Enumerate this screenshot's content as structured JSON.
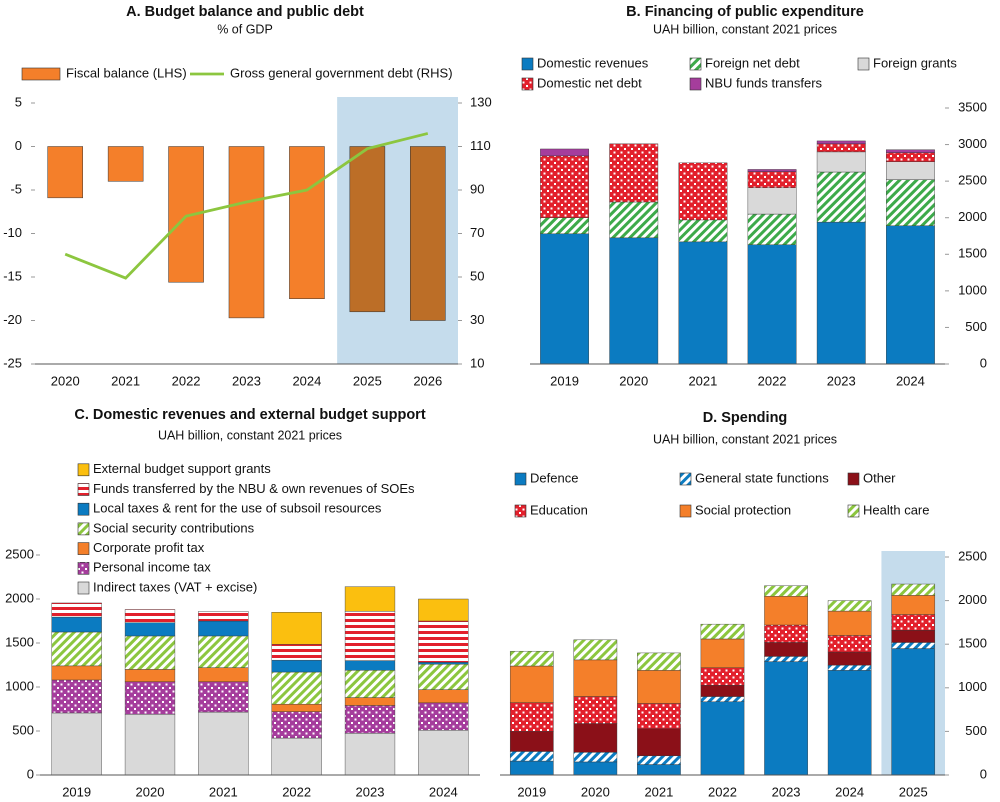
{
  "chart_data": [
    {
      "type": "bar",
      "title": "A. Budget balance and public debt",
      "subtitle": "% of GDP",
      "categories": [
        "2020",
        "2021",
        "2022",
        "2023",
        "2024",
        "2025",
        "2026"
      ],
      "series": [
        {
          "name": "Fiscal balance (LHS)",
          "type": "bar",
          "color": "#f47f2a",
          "values": [
            -5.9,
            -4.0,
            -15.6,
            -19.7,
            -17.5,
            -19.0,
            -20.0
          ]
        },
        {
          "name": "Gross general government debt (RHS)",
          "type": "line",
          "axis": "y2",
          "color": "#8cc63f",
          "values": [
            60.5,
            49.5,
            78,
            84.5,
            90,
            109,
            116
          ]
        }
      ],
      "ylim": [
        -25,
        5
      ],
      "yticks": [
        -25,
        -20,
        -15,
        -10,
        -5,
        0,
        5
      ],
      "y2lim": [
        10,
        130
      ],
      "y2ticks": [
        10,
        30,
        50,
        70,
        90,
        110,
        130
      ],
      "y_axis": "left",
      "highlight_from": "2025",
      "highlight_color": "#c5dcec"
    },
    {
      "type": "stacked_bar",
      "title": "B. Financing of public expenditure",
      "subtitle": "UAH billion, constant 2021 prices",
      "categories": [
        "2019",
        "2020",
        "2021",
        "2022",
        "2023",
        "2024"
      ],
      "series": [
        {
          "name": "Domestic revenues",
          "color": "#0b7bc1",
          "pattern": "solid",
          "values": [
            1780,
            1725,
            1670,
            1630,
            1940,
            1890
          ]
        },
        {
          "name": "Foreign net debt",
          "color": "#3daa4a",
          "pattern": "diagonal",
          "values": [
            220,
            490,
            300,
            420,
            685,
            630
          ]
        },
        {
          "name": "Foreign grants",
          "color": "#d9d9d9",
          "pattern": "solid",
          "values": [
            0,
            0,
            0,
            360,
            275,
            245
          ]
        },
        {
          "name": "Domestic net debt",
          "color": "#e2202c",
          "pattern": "dots",
          "values": [
            845,
            795,
            780,
            220,
            110,
            125
          ]
        },
        {
          "name": "NBU funds transfers",
          "color": "#a53d9c",
          "pattern": "solid",
          "values": [
            95,
            0,
            0,
            30,
            40,
            40
          ]
        }
      ],
      "ylim": [
        0,
        3500
      ],
      "yticks": [
        0,
        500,
        1000,
        1500,
        2000,
        2500,
        3000,
        3500
      ],
      "y_axis": "right"
    },
    {
      "type": "stacked_bar",
      "title": "C. Domestic revenues and external budget support",
      "subtitle": "UAH billion, constant 2021 prices",
      "categories": [
        "2019",
        "2020",
        "2021",
        "2022",
        "2023",
        "2024"
      ],
      "series": [
        {
          "name": "Indirect taxes (VAT + excise)",
          "color": "#d9d9d9",
          "pattern": "solid",
          "values": [
            705,
            690,
            715,
            420,
            475,
            510
          ]
        },
        {
          "name": "Personal income tax",
          "color": "#a53d9c",
          "pattern": "dots",
          "values": [
            375,
            370,
            345,
            300,
            315,
            310
          ]
        },
        {
          "name": "Corporate profit tax",
          "color": "#f47f2a",
          "pattern": "solid",
          "values": [
            160,
            140,
            160,
            85,
            90,
            150
          ]
        },
        {
          "name": "Social security contributions",
          "color": "#8cc63f",
          "pattern": "diagonal",
          "values": [
            385,
            380,
            360,
            365,
            310,
            290
          ]
        },
        {
          "name": "Local taxes & rent for the use of subsoil resources",
          "color": "#0b7bc1",
          "pattern": "solid",
          "values": [
            170,
            150,
            170,
            135,
            110,
            20
          ]
        },
        {
          "name": "Funds transferred by the NBU & own revenues of SOEs",
          "color": "#e2202c",
          "pattern": "stripes",
          "values": [
            160,
            150,
            110,
            180,
            560,
            470
          ]
        },
        {
          "name": "External budget support grants",
          "color": "#fbbf0f",
          "pattern": "solid",
          "values": [
            0,
            0,
            0,
            365,
            280,
            250
          ]
        }
      ],
      "ylim": [
        0,
        2500
      ],
      "yticks": [
        0,
        500,
        1000,
        1500,
        2000,
        2500
      ],
      "y_axis": "left"
    },
    {
      "type": "stacked_bar",
      "title": "D. Spending",
      "subtitle": "UAH billion, constant 2021 prices",
      "categories": [
        "2019",
        "2020",
        "2021",
        "2022",
        "2023",
        "2024",
        "2025"
      ],
      "series": [
        {
          "name": "Defence",
          "color": "#0b7bc1",
          "pattern": "solid",
          "values": [
            160,
            150,
            120,
            840,
            1300,
            1200,
            1450
          ]
        },
        {
          "name": "General state functions",
          "color": "#0b7bc1",
          "pattern": "diagonal",
          "values": [
            110,
            110,
            100,
            60,
            60,
            60,
            70
          ]
        },
        {
          "name": "Other",
          "color": "#8b1018",
          "pattern": "solid",
          "values": [
            230,
            330,
            310,
            130,
            160,
            150,
            140
          ]
        },
        {
          "name": "Education",
          "color": "#e2202c",
          "pattern": "dots",
          "values": [
            330,
            310,
            290,
            200,
            200,
            190,
            180
          ]
        },
        {
          "name": "Social protection",
          "color": "#f47f2a",
          "pattern": "solid",
          "values": [
            420,
            420,
            380,
            330,
            330,
            280,
            220
          ]
        },
        {
          "name": "Health care",
          "color": "#8cc63f",
          "pattern": "diagonal",
          "values": [
            170,
            230,
            200,
            170,
            120,
            120,
            130
          ]
        }
      ],
      "ylim": [
        0,
        2500
      ],
      "yticks": [
        0,
        500,
        1000,
        1500,
        2000,
        2500
      ],
      "y_axis": "right",
      "highlight_from": "2025",
      "highlight_color": "#c5dcec"
    }
  ]
}
